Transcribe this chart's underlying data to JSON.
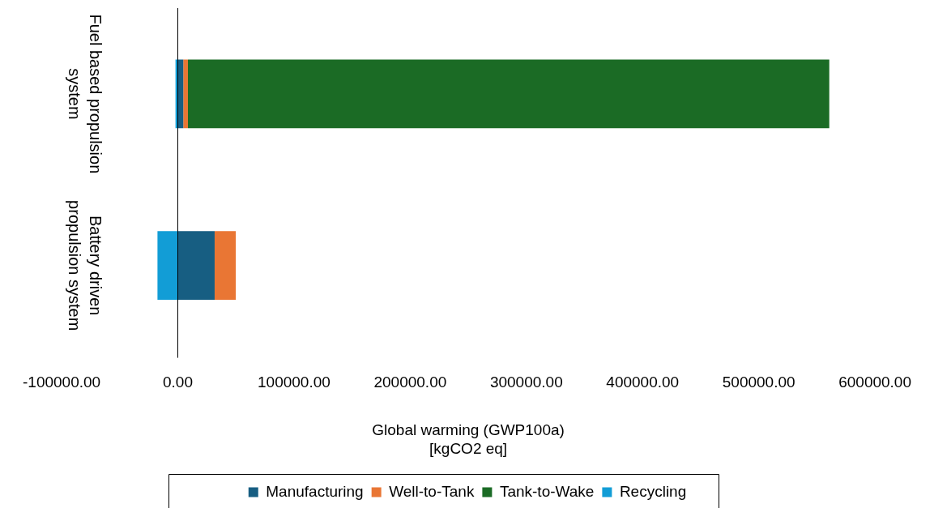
{
  "chart_data": {
    "type": "bar",
    "orientation": "horizontal",
    "stacked": true,
    "categories": [
      "Fuel based propulsion system",
      "Battery driven propulsion system"
    ],
    "series": [
      {
        "name": "Manufacturing",
        "color": "#175e82",
        "values": [
          4700,
          31700
        ]
      },
      {
        "name": "Well-to-Tank",
        "color": "#e97634",
        "values": [
          4000,
          18200
        ]
      },
      {
        "name": "Tank-to-Wake",
        "color": "#1b6b25",
        "values": [
          552000,
          null
        ]
      },
      {
        "name": "Recycling",
        "color": "#129dd6",
        "values": [
          -2000,
          -17500
        ]
      }
    ],
    "xlabel": "Global warming (GWP100a)\n[kgCO2 eq]",
    "xlim": [
      -100000,
      600000
    ],
    "xticks": [
      {
        "value": -100000,
        "label": "-100000.00"
      },
      {
        "value": 0,
        "label": "0.00"
      },
      {
        "value": 100000,
        "label": "100000.00"
      },
      {
        "value": 200000,
        "label": "200000.00"
      },
      {
        "value": 300000,
        "label": "300000.00"
      },
      {
        "value": 400000,
        "label": "400000.00"
      },
      {
        "value": 500000,
        "label": "500000.00"
      },
      {
        "value": 600000,
        "label": "600000.00"
      }
    ],
    "ref_lines": [
      {
        "axis": "x",
        "value": 0,
        "color": "#000000"
      }
    ],
    "grid": false,
    "legend": "bottom"
  }
}
